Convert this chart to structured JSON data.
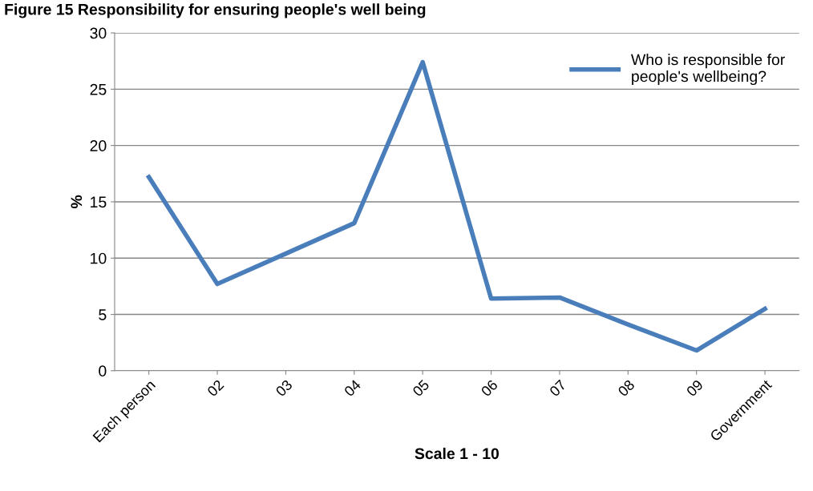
{
  "chart_data": {
    "type": "line",
    "title": "Figure 15 Responsibility for ensuring people's well being",
    "xlabel": "Scale 1 - 10",
    "ylabel": "%",
    "categories": [
      "Each person",
      "02",
      "03",
      "04",
      "05",
      "06",
      "07",
      "08",
      "09",
      "Government"
    ],
    "series": [
      {
        "name": "Who is responsible for\npeople's wellbeing?",
        "color": "#4a7ebb",
        "values": [
          17.2,
          7.7,
          10.4,
          13.1,
          27.4,
          6.4,
          6.5,
          4.1,
          1.8,
          5.5
        ]
      }
    ],
    "ylim": [
      0,
      30
    ],
    "yticks": [
      0,
      5,
      10,
      15,
      20,
      25,
      30
    ],
    "grid": "y",
    "legend": "top right",
    "marker": "none",
    "line_style": "solid"
  }
}
